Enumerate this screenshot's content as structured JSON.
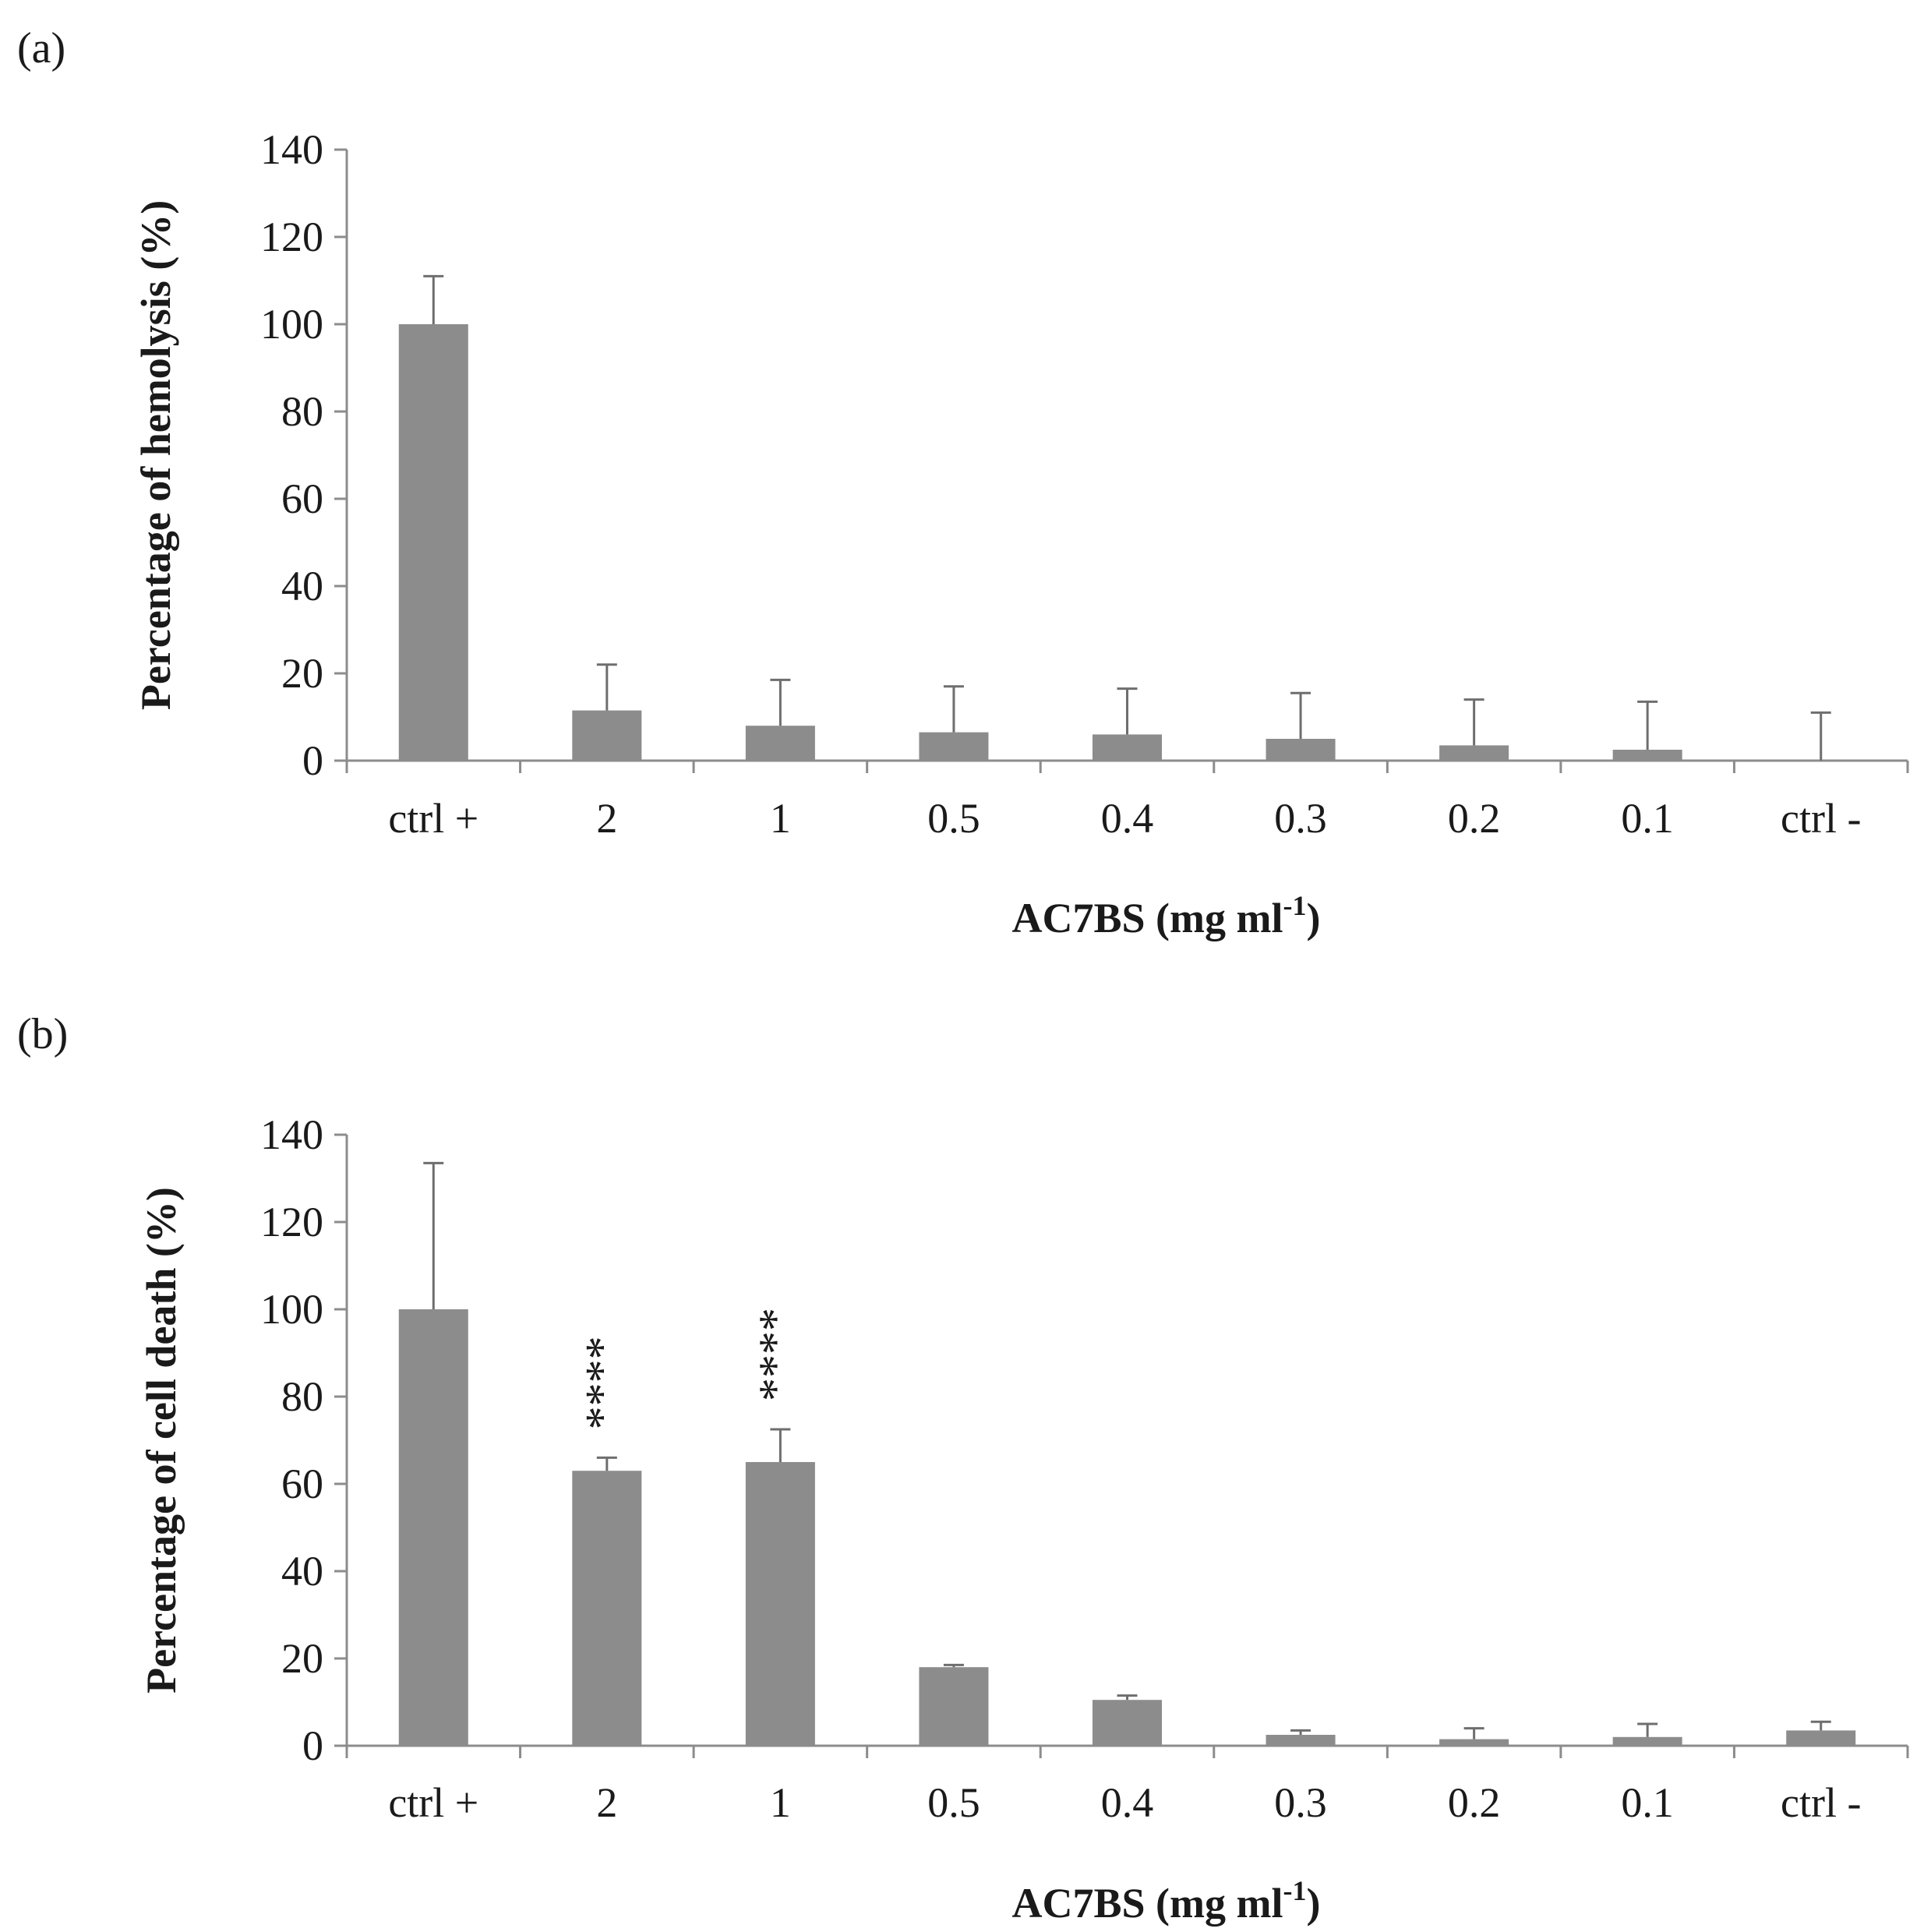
{
  "chart_data": [
    {
      "type": "bar",
      "panel_label": "(a)",
      "categories": [
        "ctrl +",
        "2",
        "1",
        "0.5",
        "0.4",
        "0.3",
        "0.2",
        "0.1",
        "ctrl -"
      ],
      "values": [
        100,
        11.5,
        8,
        6.5,
        6,
        5,
        3.5,
        2.5,
        0
      ],
      "errors": [
        11,
        10.5,
        10.5,
        10.5,
        10.5,
        10.5,
        10.5,
        11,
        11
      ],
      "significance": [
        "",
        "",
        "",
        "",
        "",
        "",
        "",
        "",
        ""
      ],
      "xlabel": "AC7BS (mg ml",
      "xlabel_sup": "-1",
      "xlabel_end": ")",
      "ylabel": "Percentage of hemolysis (%)",
      "ylim": [
        0,
        140
      ],
      "yticks": [
        0,
        20,
        40,
        60,
        80,
        100,
        120,
        140
      ],
      "bar_color": "#8c8c8c",
      "grid": false
    },
    {
      "type": "bar",
      "panel_label": "(b)",
      "categories": [
        "ctrl +",
        "2",
        "1",
        "0.5",
        "0.4",
        "0.3",
        "0.2",
        "0.1",
        "ctrl -"
      ],
      "values": [
        100,
        63,
        65,
        18,
        10.5,
        2.5,
        1.5,
        2,
        3.5
      ],
      "errors": [
        33.5,
        3,
        7.5,
        0.5,
        1,
        1,
        2.5,
        3,
        2
      ],
      "significance": [
        "",
        "****",
        "****",
        "",
        "",
        "",
        "",
        "",
        ""
      ],
      "xlabel": "AC7BS (mg ml",
      "xlabel_sup": "-1",
      "xlabel_end": ")",
      "ylabel": "Percentage of cell death (%)",
      "ylim": [
        0,
        140
      ],
      "yticks": [
        0,
        20,
        40,
        60,
        80,
        100,
        120,
        140
      ],
      "bar_color": "#8c8c8c",
      "grid": false
    }
  ]
}
